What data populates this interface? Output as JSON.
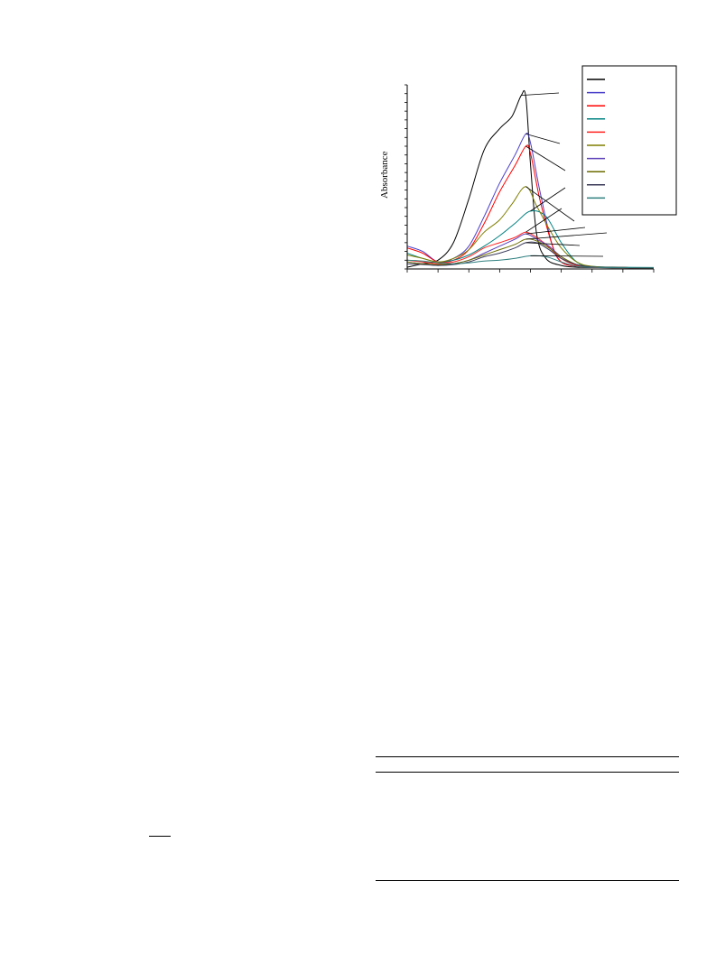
{
  "figure": {
    "chart_data": {
      "type": "line",
      "ylabel": "Absorbance",
      "xlabel": "",
      "xlim": [
        0,
        8
      ],
      "ylim": [
        0,
        10.5
      ],
      "legend_position": "top-right",
      "series": [
        {
          "color": "#000000",
          "x": [
            0,
            0.5,
            1,
            1.5,
            2,
            2.5,
            3,
            3.4,
            3.7,
            3.85,
            4,
            4.2,
            4.5,
            5,
            5.5,
            6,
            7,
            8
          ],
          "y": [
            0.1,
            0.3,
            0.5,
            1.5,
            4,
            6.8,
            8,
            8.7,
            9.9,
            9.8,
            6,
            2,
            0.6,
            0.2,
            0.1,
            0.08,
            0.06,
            0.05
          ]
        },
        {
          "color": "#4a3fc9",
          "x": [
            0,
            0.5,
            1,
            1.5,
            2,
            2.5,
            3,
            3.5,
            3.85,
            4,
            4.3,
            4.7,
            5,
            5.5,
            6,
            7,
            8
          ],
          "y": [
            1.3,
            1,
            0.4,
            0.6,
            1.3,
            3,
            4.9,
            6.5,
            7.7,
            7.2,
            4.5,
            1.4,
            0.4,
            0.15,
            0.1,
            0.08,
            0.06
          ]
        },
        {
          "color": "#ff0000",
          "x": [
            0,
            0.5,
            1,
            1.5,
            2,
            2.5,
            3,
            3.5,
            3.85,
            4,
            4.3,
            4.7,
            5,
            5.5,
            6,
            7,
            8
          ],
          "y": [
            1.2,
            0.9,
            0.4,
            0.5,
            1.1,
            2.6,
            4.4,
            5.9,
            7,
            6.6,
            4,
            1.4,
            0.4,
            0.15,
            0.1,
            0.08,
            0.06
          ]
        },
        {
          "color": "#008080",
          "x": [
            0,
            0.5,
            1,
            1.5,
            2,
            2.5,
            3,
            3.5,
            4,
            4.5,
            5,
            5.5,
            6,
            7,
            8
          ],
          "y": [
            0.9,
            0.6,
            0.4,
            0.5,
            0.8,
            1.3,
            1.9,
            2.6,
            3.3,
            3,
            1.5,
            0.4,
            0.15,
            0.1,
            0.08
          ]
        },
        {
          "color": "#ff2020",
          "x": [
            0,
            0.5,
            1,
            1.5,
            2,
            2.5,
            3,
            3.5,
            3.85,
            4.2,
            4.5,
            5,
            5.5,
            6,
            7,
            8
          ],
          "y": [
            0.5,
            0.4,
            0.3,
            0.4,
            0.7,
            1.2,
            1.5,
            1.8,
            2.1,
            1.8,
            1.4,
            0.6,
            0.2,
            0.1,
            0.08,
            0.06
          ]
        },
        {
          "color": "#7f7f00",
          "x": [
            0,
            0.5,
            1,
            1.5,
            2,
            2.5,
            3,
            3.4,
            3.85,
            4.2,
            4.6,
            5,
            5.5,
            6,
            7,
            8
          ],
          "y": [
            0.8,
            0.6,
            0.4,
            0.6,
            1.1,
            2.1,
            2.8,
            3.7,
            4.7,
            3.6,
            2.3,
            1.2,
            0.4,
            0.15,
            0.08,
            0.06
          ]
        },
        {
          "color": "#5b3fb8",
          "x": [
            0,
            0.5,
            1,
            1.5,
            2,
            2.5,
            3,
            3.5,
            3.85,
            4.2,
            4.6,
            5,
            5.5,
            6,
            7,
            8
          ],
          "y": [
            0.4,
            0.3,
            0.2,
            0.3,
            0.5,
            0.9,
            1.3,
            1.7,
            2,
            1.7,
            1.3,
            0.7,
            0.25,
            0.12,
            0.08,
            0.06
          ]
        },
        {
          "color": "#6b6b00",
          "x": [
            0,
            0.5,
            1,
            1.5,
            2,
            2.5,
            3,
            3.5,
            3.85,
            4.2,
            4.6,
            5,
            5.5,
            6,
            7,
            8
          ],
          "y": [
            0.4,
            0.3,
            0.25,
            0.3,
            0.5,
            0.8,
            1.1,
            1.4,
            1.7,
            1.6,
            1.2,
            0.7,
            0.25,
            0.12,
            0.08,
            0.06
          ]
        },
        {
          "color": "#3a3a5a",
          "x": [
            0,
            0.5,
            1,
            1.5,
            2,
            2.5,
            3,
            3.5,
            3.85,
            4.2,
            4.6,
            5,
            5.5,
            6,
            7,
            8
          ],
          "y": [
            0.3,
            0.25,
            0.2,
            0.25,
            0.4,
            0.7,
            0.9,
            1.2,
            1.5,
            1.5,
            1.1,
            0.6,
            0.25,
            0.12,
            0.08,
            0.06
          ]
        },
        {
          "color": "#2f7f7f",
          "x": [
            0,
            0.5,
            1,
            1.5,
            2,
            2.5,
            3,
            3.5,
            4,
            4.5,
            5,
            5.5,
            6,
            7,
            8
          ],
          "y": [
            0.5,
            0.45,
            0.35,
            0.3,
            0.35,
            0.45,
            0.5,
            0.6,
            0.75,
            0.7,
            0.4,
            0.15,
            0.1,
            0.08,
            0.06
          ]
        }
      ]
    }
  }
}
